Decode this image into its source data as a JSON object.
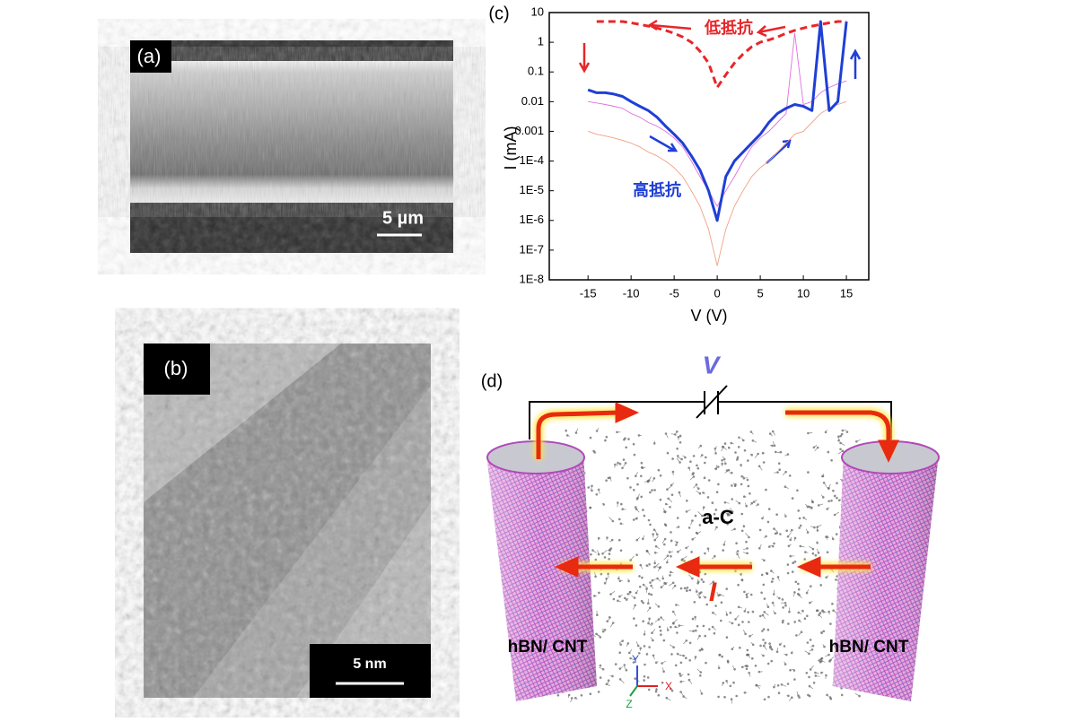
{
  "panels": {
    "a": {
      "label": "(a)",
      "scale_bar": "5 µm"
    },
    "b": {
      "label": "(b)",
      "scale_bar": "5 nm"
    },
    "c": {
      "label": "(c)"
    },
    "d": {
      "label": "(d)",
      "voltage": "V",
      "material": "a-C",
      "current": "I",
      "left_electrode": "hBN/ CNT",
      "right_electrode": "hBN/ CNT",
      "axes": [
        "Y",
        "X",
        "Z"
      ]
    }
  },
  "chart_data": {
    "type": "line",
    "log_y": true,
    "xlabel": "V (V)",
    "ylabel": "I (mA)",
    "xlim": [
      -19.5,
      17.6
    ],
    "ylim": [
      1e-08,
      10
    ],
    "xticks": [
      -15,
      -10,
      -5,
      0,
      5,
      10,
      15
    ],
    "yticks": [
      10,
      1,
      0.1,
      0.01,
      0.001,
      {
        "value": 0.0001,
        "label": "1E-4"
      },
      {
        "value": 1e-05,
        "label": "1E-5"
      },
      {
        "value": 1e-06,
        "label": "1E-6"
      },
      {
        "value": 1e-07,
        "label": "1E-7"
      },
      {
        "value": 1e-08,
        "label": "1E-8"
      }
    ],
    "annotations": [
      {
        "text": "低抵抗",
        "color": "#e8262a"
      },
      {
        "text": "高抵抗",
        "color": "#1f3fd6"
      }
    ],
    "x": [
      -15,
      -14,
      -13,
      -12,
      -11,
      -10,
      -9,
      -8,
      -7,
      -6,
      -5,
      -4,
      -3,
      -2,
      -1,
      0,
      1,
      2,
      3,
      4,
      5,
      6,
      7,
      8,
      9,
      10,
      11,
      12,
      13,
      14,
      15
    ],
    "series": [
      {
        "color": "#f0a080",
        "line_style": "thin",
        "values": [
          0.001,
          0.0008,
          0.0007,
          0.0006,
          0.0005,
          0.0004,
          0.0003,
          0.0002,
          0.00015,
          0.0001,
          6e-05,
          3e-05,
          1e-05,
          3e-06,
          5e-07,
          3e-08,
          5e-07,
          3e-06,
          1e-05,
          3e-05,
          6e-05,
          0.0001,
          0.0002,
          0.0004,
          0.0008,
          0.001,
          0.002,
          0.004,
          0.006,
          0.008,
          0.01
        ]
      },
      {
        "color": "#e070e0",
        "line_style": "thin",
        "values": [
          0.01,
          0.009,
          0.008,
          0.007,
          0.006,
          0.004,
          0.003,
          0.002,
          0.0015,
          0.001,
          0.0006,
          0.0003,
          0.0001,
          3e-05,
          1e-05,
          3e-06,
          1e-05,
          3e-05,
          0.0001,
          0.0003,
          0.0006,
          0.001,
          0.002,
          0.004,
          2,
          0.008,
          0.01,
          0.02,
          0.03,
          0.04,
          0.05
        ]
      },
      {
        "color": "#1f3fd6",
        "line_style": "thick",
        "values": [
          0.025,
          0.02,
          0.02,
          0.018,
          0.015,
          0.01,
          0.007,
          0.005,
          0.003,
          0.0015,
          0.0008,
          0.0004,
          0.00015,
          5e-05,
          1e-05,
          1e-06,
          3e-05,
          0.0001,
          0.0002,
          0.0004,
          0.0008,
          0.002,
          0.004,
          0.006,
          0.008,
          0.007,
          0.005,
          5,
          0.005,
          0.01,
          5
        ]
      },
      {
        "color": "#e8262a",
        "line_style": "dashed",
        "values": [
          null,
          5,
          5,
          5,
          5,
          4.5,
          4,
          3.5,
          3,
          2.5,
          2,
          1.5,
          1,
          0.5,
          0.2,
          0.03,
          0.08,
          0.2,
          0.4,
          0.7,
          1,
          1.2,
          1.5,
          2,
          2.5,
          3,
          3.5,
          4,
          4.5,
          5,
          5
        ]
      }
    ]
  }
}
